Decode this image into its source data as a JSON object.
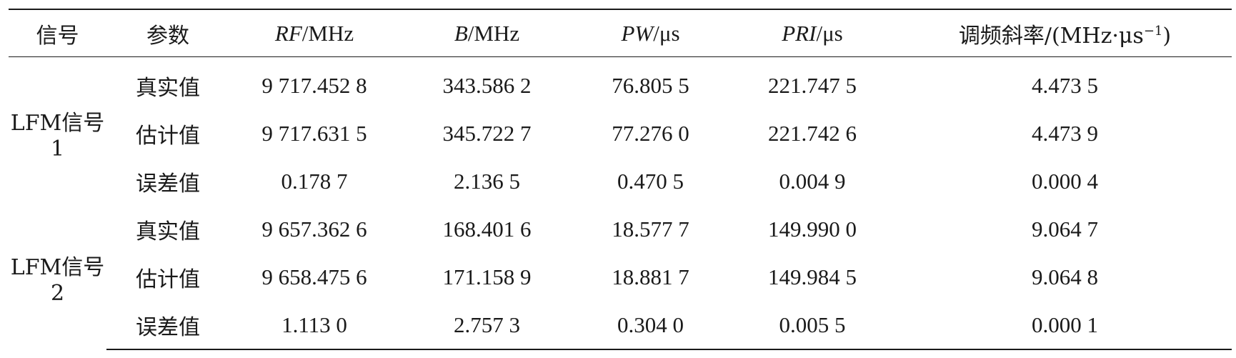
{
  "table": {
    "headers": {
      "signal": "信号",
      "param": "参数",
      "rf_var": "RF",
      "rf_unit": "/MHz",
      "b_var": "B",
      "b_unit": "/MHz",
      "pw_var": "PW",
      "pw_unit": "/μs",
      "pri_var": "PRI",
      "pri_unit": "/μs",
      "chirp_label": "调频斜率/(MHz·μs",
      "chirp_exp": "−1",
      "chirp_close": ")"
    },
    "groups": [
      {
        "signal": "LFM信号1",
        "rows": [
          {
            "param": "真实值",
            "rf": "9 717.452 8",
            "b": "343.586 2",
            "pw": "76.805 5",
            "pri": "221.747 5",
            "chirp": "4.473 5"
          },
          {
            "param": "估计值",
            "rf": "9 717.631 5",
            "b": "345.722 7",
            "pw": "77.276 0",
            "pri": "221.742 6",
            "chirp": "4.473 9"
          },
          {
            "param": "误差值",
            "rf": "0.178 7",
            "b": "2.136 5",
            "pw": "0.470 5",
            "pri": "0.004 9",
            "chirp": "0.000 4"
          }
        ]
      },
      {
        "signal": "LFM信号2",
        "rows": [
          {
            "param": "真实值",
            "rf": "9 657.362 6",
            "b": "168.401 6",
            "pw": "18.577 7",
            "pri": "149.990 0",
            "chirp": "9.064 7"
          },
          {
            "param": "估计值",
            "rf": "9 658.475 6",
            "b": "171.158 9",
            "pw": "18.881 7",
            "pri": "149.984 5",
            "chirp": "9.064 8"
          },
          {
            "param": "误差值",
            "rf": "1.113 0",
            "b": "2.757 3",
            "pw": "0.304 0",
            "pri": "0.005 5",
            "chirp": "0.000 1"
          }
        ]
      }
    ]
  }
}
